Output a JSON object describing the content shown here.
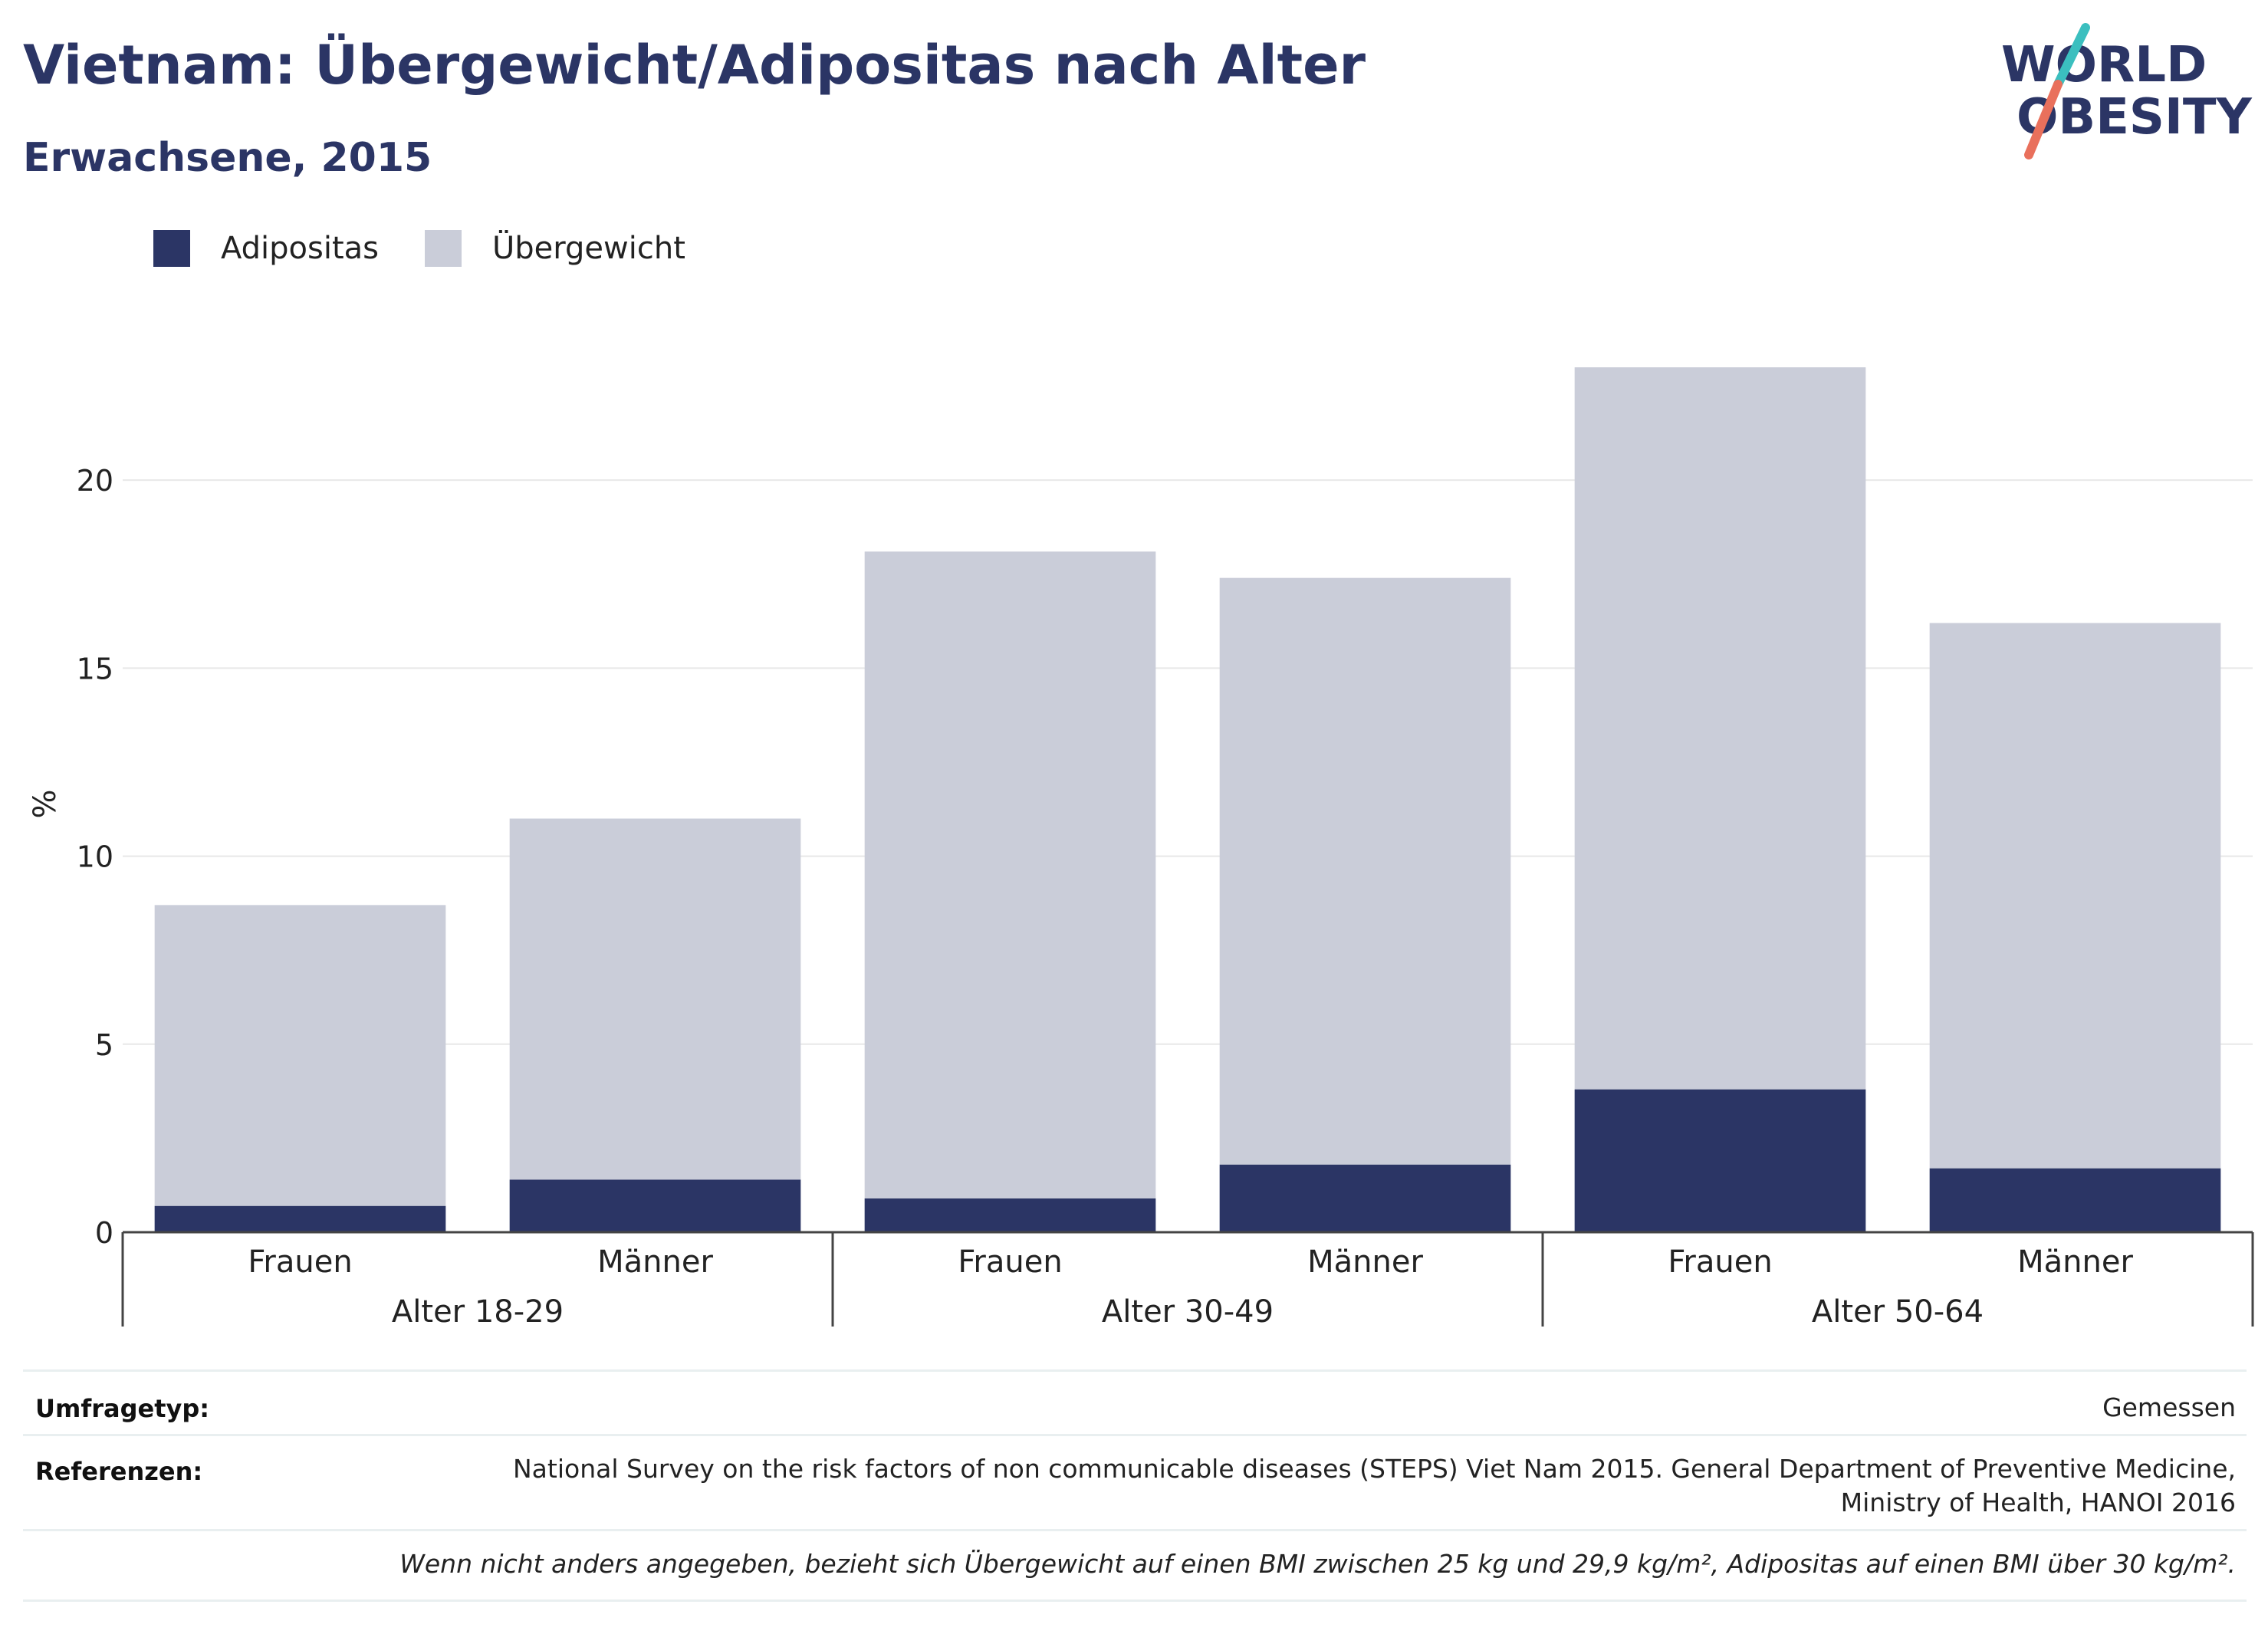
{
  "header": {
    "title": "Vietnam: Übergewicht/Adipositas nach Alter",
    "subtitle": "Erwachsene, 2015"
  },
  "logo": {
    "line1": "WORLD",
    "line2": "OBESITY",
    "icon": "world-obesity-slash-logo"
  },
  "colors": {
    "adipositas": "#2b3565",
    "uebergewicht": "#cacdd9",
    "grid": "#e8e8e8",
    "axis": "#444444"
  },
  "legend": [
    {
      "label": "Adipositas",
      "color": "#2b3565"
    },
    {
      "label": "Übergewicht",
      "color": "#cacdd9"
    }
  ],
  "chart_data": {
    "type": "bar",
    "stacked": true,
    "ylabel": "%",
    "ylim": [
      0,
      24
    ],
    "yticks": [
      0,
      5,
      10,
      15,
      20
    ],
    "grid": true,
    "legend_position": "top-left",
    "groups": [
      "Alter 18-29",
      "Alter 30-49",
      "Alter 50-64"
    ],
    "categories": [
      "Frauen",
      "Männer",
      "Frauen",
      "Männer",
      "Frauen",
      "Männer"
    ],
    "group_index": [
      0,
      0,
      1,
      1,
      2,
      2
    ],
    "series": [
      {
        "name": "Adipositas",
        "values": [
          0.7,
          1.4,
          0.9,
          1.8,
          3.8,
          1.7
        ]
      },
      {
        "name": "Übergewicht",
        "values": [
          8.0,
          9.6,
          17.2,
          15.6,
          19.2,
          14.5
        ]
      }
    ]
  },
  "info": {
    "survey_key": "Umfragetyp:",
    "survey_value": "Gemessen",
    "ref_key": "Referenzen:",
    "ref_line1": "National Survey on the risk factors of non communicable diseases (STEPS) Viet Nam 2015. General Department of Preventive Medicine,",
    "ref_line2": "Ministry of Health, HANOI 2016",
    "note": "Wenn nicht anders angegeben, bezieht sich Übergewicht auf einen BMI zwischen 25 kg und 29,9 kg/m², Adipositas auf einen BMI über 30 kg/m²."
  }
}
